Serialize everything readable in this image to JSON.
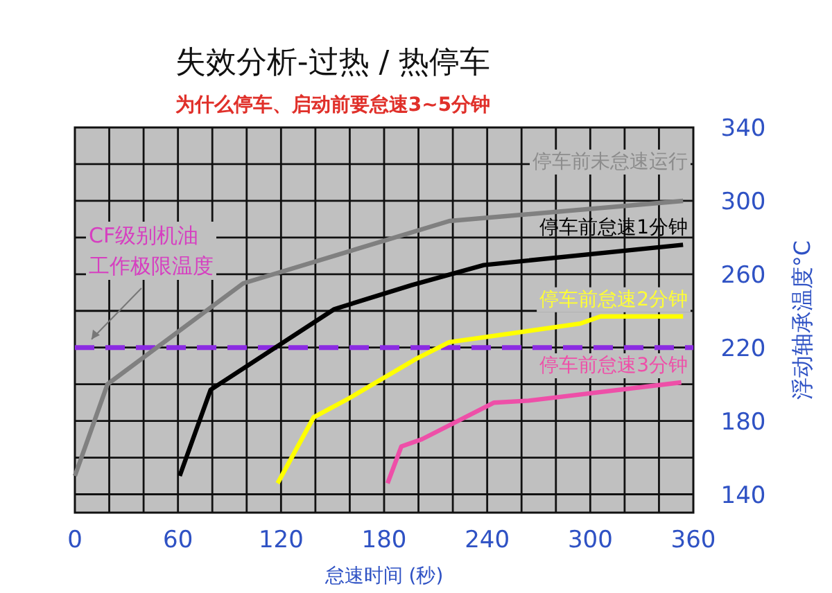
{
  "chart_data": {
    "type": "line",
    "title": "失效分析-过热 / 热停车",
    "subtitle": "为什么停车、启动前要怠速3~5分钟",
    "xlabel": "怠速时间 (秒)",
    "ylabel": "浮动轴承温度°C",
    "xlim": [
      0,
      360
    ],
    "xticks": [
      0,
      60,
      120,
      180,
      240,
      300,
      360
    ],
    "ylim": [
      130,
      340
    ],
    "yticks": [
      140,
      180,
      220,
      260,
      300,
      340
    ],
    "grid": true,
    "marker": "none",
    "line_style": "solid",
    "series": [
      {
        "name": "停车前未怠速运行",
        "color": "#808080",
        "x": [
          0,
          19,
          98,
          218,
          354
        ],
        "values": [
          150,
          200,
          255,
          289,
          300
        ]
      },
      {
        "name": "停车前怠速1分钟",
        "color": "#000000",
        "x": [
          61,
          79,
          151,
          196,
          238,
          354
        ],
        "values": [
          150,
          197,
          241,
          254,
          265,
          276
        ]
      },
      {
        "name": "停车前怠速2分钟",
        "color": "#ffff00",
        "x": [
          118,
          139,
          159,
          199,
          218,
          294,
          306,
          354
        ],
        "values": [
          146,
          182,
          192,
          214,
          223,
          233,
          237,
          237
        ]
      },
      {
        "name": "停车前怠速3分钟",
        "color": "#ee4fa8",
        "x": [
          182,
          190,
          202,
          244,
          264,
          353
        ],
        "values": [
          146,
          166,
          170,
          190,
          191,
          201
        ]
      }
    ],
    "ref_lines": [
      {
        "axis": "y",
        "value": 220,
        "label": "CF级别机油工作极限温度",
        "color": "#8b2be2",
        "line_style": "dashed"
      }
    ]
  }
}
